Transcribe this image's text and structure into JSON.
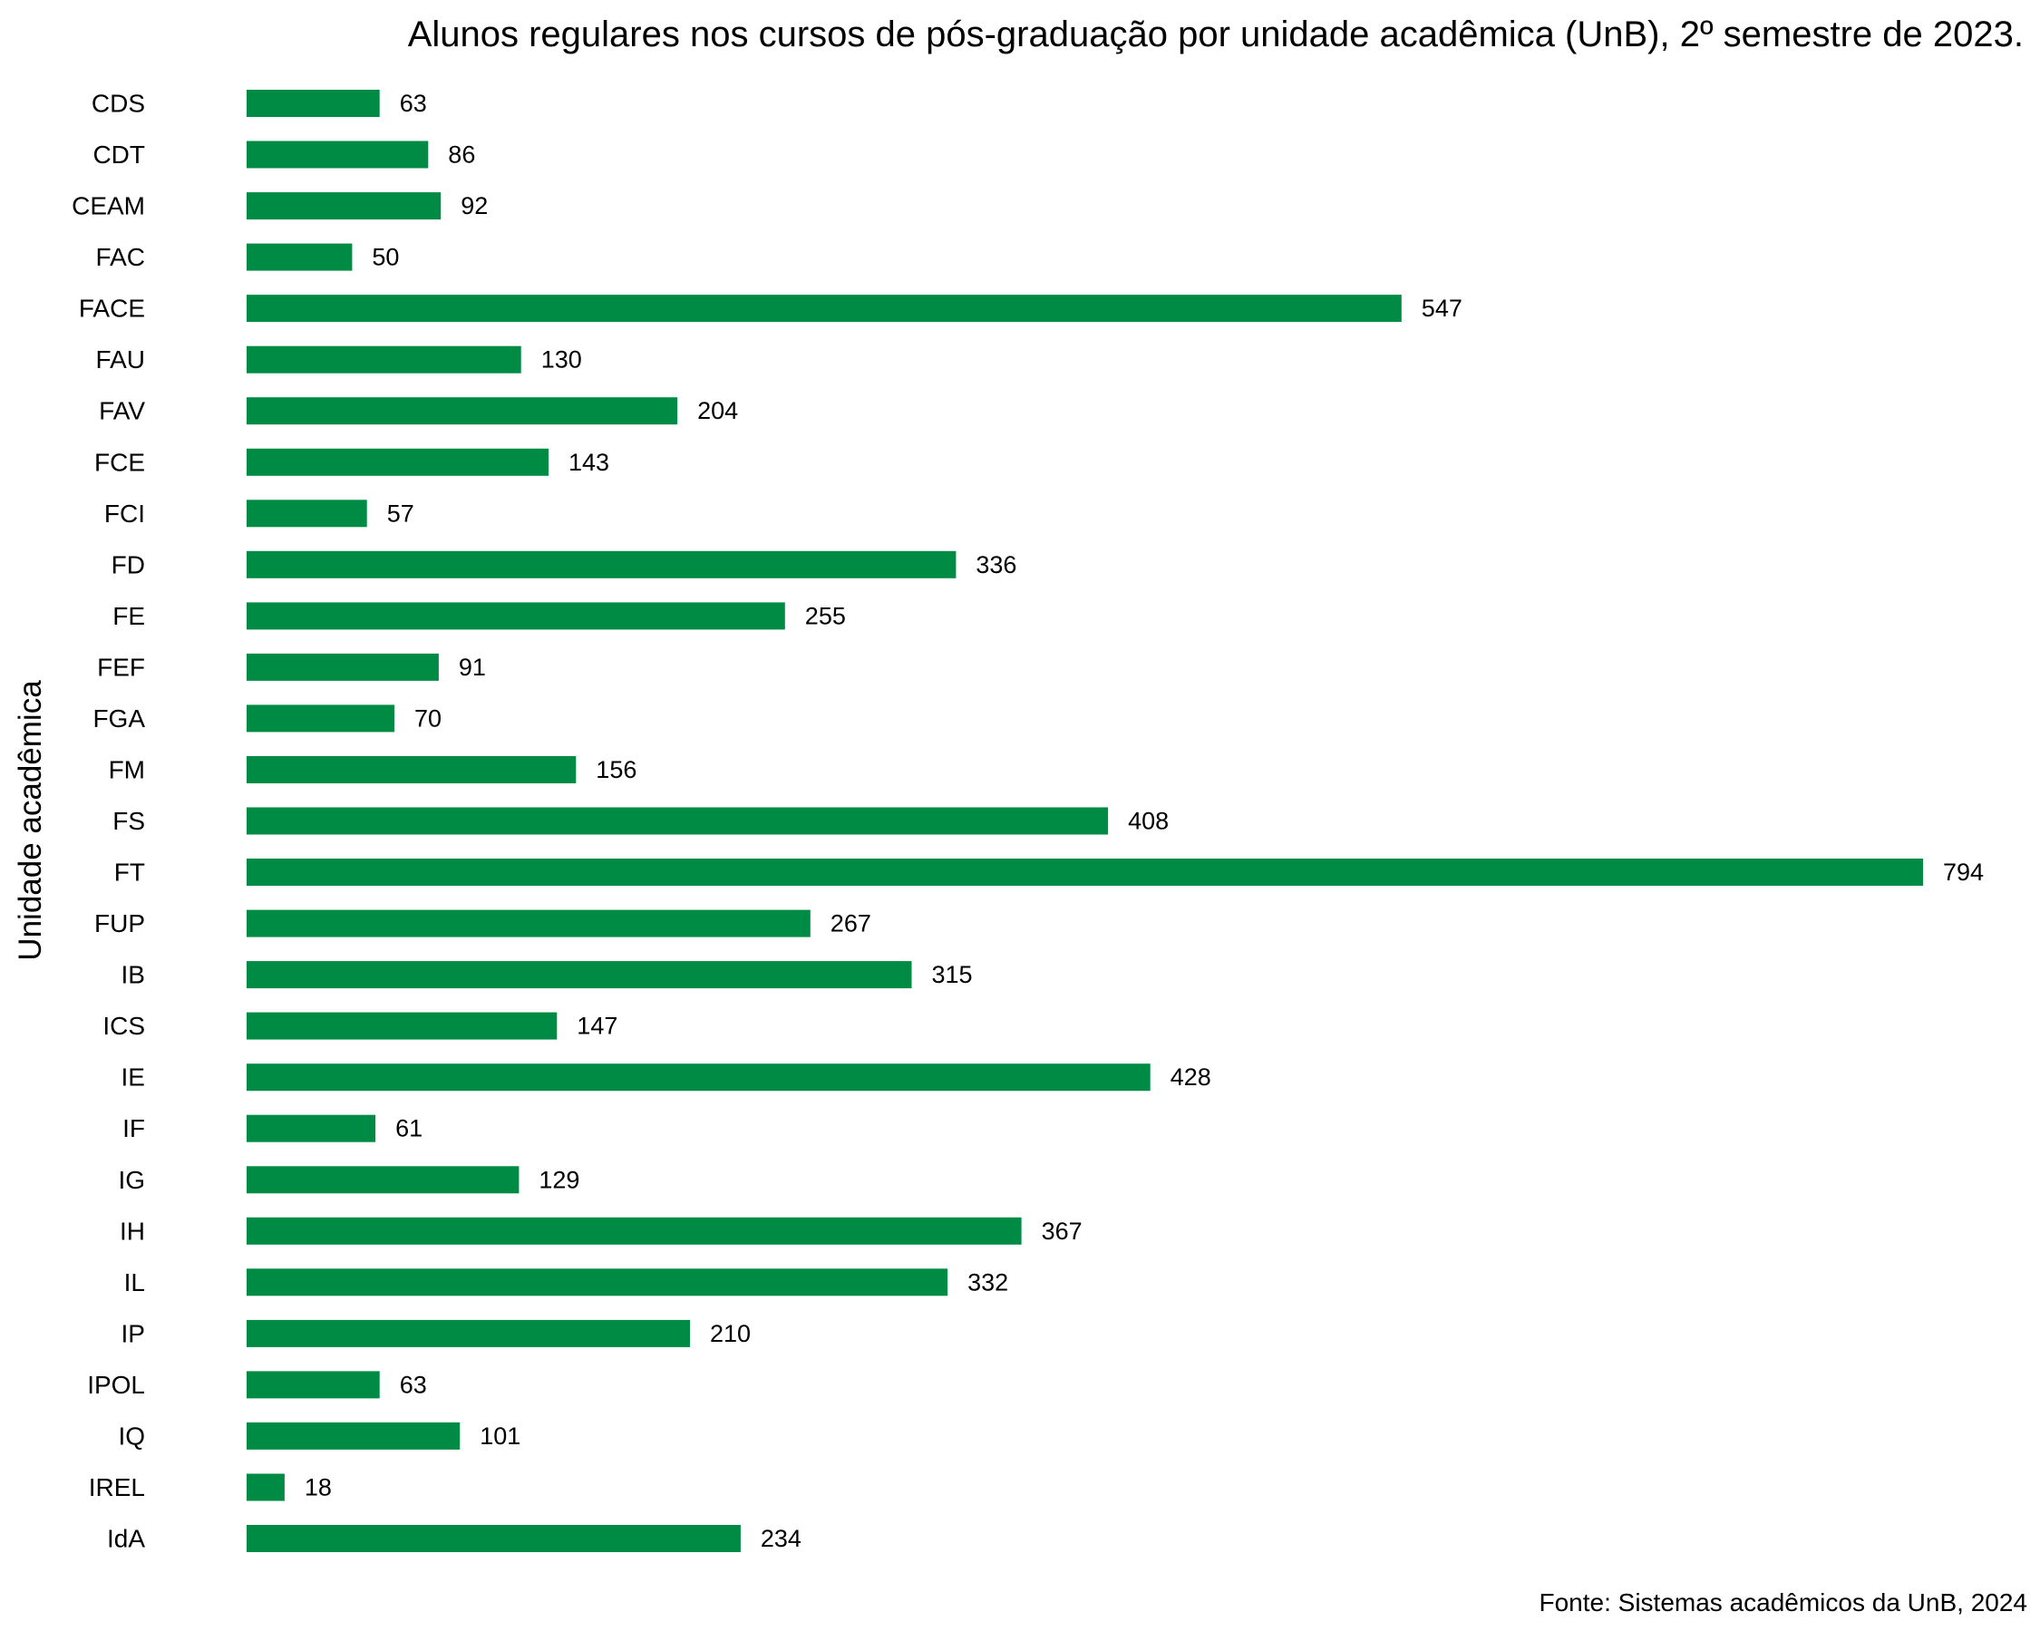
{
  "chart_data": {
    "type": "bar",
    "orientation": "horizontal",
    "title": "Alunos regulares nos cursos de pós-graduação por unidade acadêmica (UnB), 2º semestre de 2023.",
    "xlabel": "",
    "ylabel": "Unidade acadêmica",
    "source": "Fonte: Sistemas acadêmicos da UnB, 2024",
    "bar_color": "#008B45",
    "grid": false,
    "xlim": [
      0,
      794
    ],
    "categories": [
      "CDS",
      "CDT",
      "CEAM",
      "FAC",
      "FACE",
      "FAU",
      "FAV",
      "FCE",
      "FCI",
      "FD",
      "FE",
      "FEF",
      "FGA",
      "FM",
      "FS",
      "FT",
      "FUP",
      "IB",
      "ICS",
      "IE",
      "IF",
      "IG",
      "IH",
      "IL",
      "IP",
      "IPOL",
      "IQ",
      "IREL",
      "IdA"
    ],
    "values": [
      63,
      86,
      92,
      50,
      547,
      130,
      204,
      143,
      57,
      336,
      255,
      91,
      70,
      156,
      408,
      794,
      267,
      315,
      147,
      428,
      61,
      129,
      367,
      332,
      210,
      63,
      101,
      18,
      234
    ]
  }
}
